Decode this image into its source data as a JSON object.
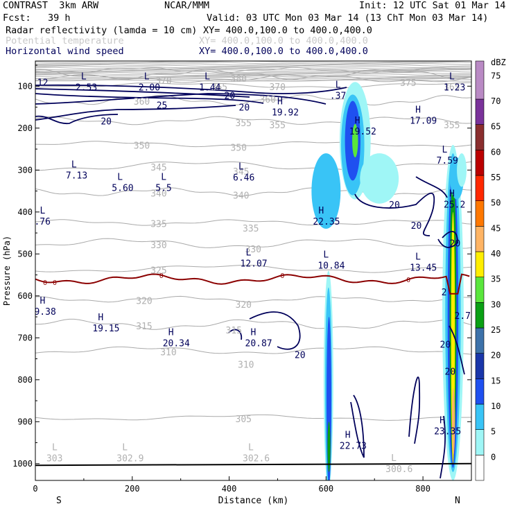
{
  "header": {
    "model": "CONTRAST  3km ARW",
    "source": "NCAR/MMM",
    "init": "Init: 12 UTC Sat 01 Mar 14",
    "fcst": "Fcst:   39 h",
    "valid": "Valid: 03 UTC Mon 03 Mar 14 (13 ChT Mon 03 Mar 14)",
    "fields": [
      {
        "label": "Radar reflectivity (lamda = 10 cm)",
        "xy": "XY= 400.0,100.0 to 400.0,400.0",
        "color": "#000000"
      },
      {
        "label": "Potential temperature",
        "xy": "XY= 400.0,100.0 to 400.0,400.0",
        "color": "#c8c8c8"
      },
      {
        "label": "Horizontal wind speed",
        "xy": "XY= 400.0,100.0 to 400.0,400.0",
        "color": "#00005a"
      }
    ]
  },
  "chart_data": {
    "type": "cross-section",
    "title": "Radar reflectivity, potential temperature, horizontal wind speed",
    "xlabel": "Distance (km)",
    "ylabel": "Pressure (hPa)",
    "xlim": [
      0,
      900
    ],
    "ylim": [
      1040,
      40
    ],
    "x_ticks": [
      0,
      200,
      400,
      600,
      800
    ],
    "y_ticks": [
      100,
      200,
      300,
      400,
      500,
      600,
      700,
      800,
      900,
      1000
    ],
    "x_ends": {
      "left": "S",
      "right": "N"
    },
    "colorbar": {
      "unit": "dBZ",
      "levels": [
        0,
        5,
        10,
        15,
        20,
        25,
        30,
        35,
        40,
        45,
        50,
        55,
        60,
        65,
        70,
        75
      ],
      "colors": [
        "#ffffff",
        "#9ff6f6",
        "#39c4f6",
        "#1f50f0",
        "#1a36aa",
        "#3d72aa",
        "#0aa014",
        "#5ae63c",
        "#ffee00",
        "#ffb464",
        "#ff7800",
        "#ff2800",
        "#bb0000",
        "#8a2e2e",
        "#7a329a",
        "#b98ac4"
      ]
    },
    "theta_contours": [
      {
        "value": 305,
        "p": 890
      },
      {
        "value": 310,
        "p": 730
      },
      {
        "value": 315,
        "p": 668
      },
      {
        "value": 320,
        "p": 608
      },
      {
        "value": 325,
        "p": 535
      },
      {
        "value": 330,
        "p": 475
      },
      {
        "value": 335,
        "p": 425
      },
      {
        "value": 340,
        "p": 352
      },
      {
        "value": 345,
        "p": 290
      },
      {
        "value": 350,
        "p": 238
      },
      {
        "value": 355,
        "p": 182
      },
      {
        "value": 360,
        "p": 133
      },
      {
        "value": 365,
        "p": 98
      },
      {
        "value": 370,
        "p": 82
      },
      {
        "value": 375,
        "p": 72
      },
      {
        "value": 380,
        "p": 62
      }
    ],
    "theta_labels": [
      {
        "text": "305",
        "x": 430,
        "p": 893
      },
      {
        "text": "310",
        "x": 275,
        "p": 733
      },
      {
        "text": "310",
        "x": 435,
        "p": 763
      },
      {
        "text": "315",
        "x": 225,
        "p": 671
      },
      {
        "text": "315",
        "x": 410,
        "p": 681
      },
      {
        "text": "320",
        "x": 225,
        "p": 611
      },
      {
        "text": "320",
        "x": 430,
        "p": 620
      },
      {
        "text": "325",
        "x": 255,
        "p": 538
      },
      {
        "text": "330",
        "x": 255,
        "p": 478
      },
      {
        "text": "330",
        "x": 450,
        "p": 488
      },
      {
        "text": "335",
        "x": 255,
        "p": 428
      },
      {
        "text": "335",
        "x": 445,
        "p": 438
      },
      {
        "text": "340",
        "x": 255,
        "p": 355
      },
      {
        "text": "340",
        "x": 425,
        "p": 360
      },
      {
        "text": "345",
        "x": 255,
        "p": 293
      },
      {
        "text": "345",
        "x": 425,
        "p": 303
      },
      {
        "text": "350",
        "x": 220,
        "p": 241
      },
      {
        "text": "350",
        "x": 420,
        "p": 246
      },
      {
        "text": "355",
        "x": 430,
        "p": 187
      },
      {
        "text": "355",
        "x": 500,
        "p": 192
      },
      {
        "text": "355",
        "x": 860,
        "p": 192
      },
      {
        "text": "360",
        "x": 220,
        "p": 136
      },
      {
        "text": "360",
        "x": 480,
        "p": 131
      },
      {
        "text": "365",
        "x": 380,
        "p": 101
      },
      {
        "text": "365",
        "x": 860,
        "p": 101
      },
      {
        "text": "370",
        "x": 265,
        "p": 86
      },
      {
        "text": "370",
        "x": 500,
        "p": 101
      },
      {
        "text": "375",
        "x": 770,
        "p": 91
      },
      {
        "text": "380",
        "x": 420,
        "p": 81
      }
    ],
    "zero_isotherm_label": "0",
    "wind_speed_contours": [
      {
        "value": 20,
        "where": "upper jet near 150-190 hPa, 0-560 km"
      },
      {
        "value": 25,
        "where": "jet core near 140 hPa, 150-300 km"
      },
      {
        "value": 20,
        "where": "mid levels 640-760 km, 350-420 hPa"
      },
      {
        "value": 20,
        "where": "700 hPa closed contours 440-630 km"
      },
      {
        "value": 20,
        "where": "lower levels 800-900 km"
      }
    ],
    "highs_lows": [
      {
        "type": "L",
        "value": "2.53",
        "x": 100,
        "p": 90
      },
      {
        "type": "L",
        "value": "2.00",
        "x": 230,
        "p": 90
      },
      {
        "type": "L",
        "value": "1.44",
        "x": 355,
        "p": 90
      },
      {
        "type": "L",
        "value": ".37",
        "x": 625,
        "p": 110
      },
      {
        "type": "L",
        "value": "1.23",
        "x": 860,
        "p": 90
      },
      {
        "type": "H",
        "value": "19.92",
        "x": 505,
        "p": 150
      },
      {
        "type": "H",
        "value": "17.09",
        "x": 790,
        "p": 170
      },
      {
        "type": "H",
        "value": "19.52",
        "x": 665,
        "p": 195
      },
      {
        "type": "L",
        "value": "7.13",
        "x": 80,
        "p": 300
      },
      {
        "type": "L",
        "value": "5.60",
        "x": 175,
        "p": 330
      },
      {
        "type": "L",
        "value": "5.5",
        "x": 265,
        "p": 330
      },
      {
        "type": "L",
        "value": "6.46",
        "x": 425,
        "p": 305
      },
      {
        "type": "L",
        "value": "7.59",
        "x": 845,
        "p": 265
      },
      {
        "type": "H",
        "value": "22.35",
        "x": 590,
        "p": 410
      },
      {
        "type": "H",
        "value": "25.2",
        "x": 860,
        "p": 370
      },
      {
        "type": "L",
        "value": ".76",
        "x": 15,
        "p": 410
      },
      {
        "type": "L",
        "value": "12.07",
        "x": 440,
        "p": 510
      },
      {
        "type": "L",
        "value": "10.84",
        "x": 600,
        "p": 515
      },
      {
        "type": "L",
        "value": "13.45",
        "x": 790,
        "p": 520
      },
      {
        "type": "H",
        "value": "9.38",
        "x": 15,
        "p": 625
      },
      {
        "type": "H",
        "value": "19.15",
        "x": 135,
        "p": 665
      },
      {
        "type": "H",
        "value": "20.34",
        "x": 280,
        "p": 700
      },
      {
        "type": "H",
        "value": "20.87",
        "x": 450,
        "p": 700
      },
      {
        "type": "H",
        "value": "23.35",
        "x": 840,
        "p": 910
      },
      {
        "type": "H",
        "value": "22.73",
        "x": 645,
        "p": 945
      },
      {
        "type": "L",
        "value": "303",
        "x": 40,
        "p": 975
      },
      {
        "type": "L",
        "value": "302.9",
        "x": 185,
        "p": 975
      },
      {
        "type": "L",
        "value": "302.6",
        "x": 445,
        "p": 975
      },
      {
        "type": "L",
        "value": "300.6",
        "x": 740,
        "p": 1000
      }
    ],
    "wind_labels": [
      {
        "text": "12",
        "x": 14,
        "p": 90
      },
      {
        "text": "20",
        "x": 400,
        "p": 122
      },
      {
        "text": "20",
        "x": 430,
        "p": 150
      },
      {
        "text": "25",
        "x": 260,
        "p": 145
      },
      {
        "text": "20",
        "x": 145,
        "p": 183
      },
      {
        "text": "20",
        "x": 740,
        "p": 382
      },
      {
        "text": "20",
        "x": 785,
        "p": 432
      },
      {
        "text": "20",
        "x": 865,
        "p": 474
      },
      {
        "text": "2",
        "x": 848,
        "p": 590
      },
      {
        "text": "2.7",
        "x": 875,
        "p": 647
      },
      {
        "text": "20",
        "x": 845,
        "p": 715
      },
      {
        "text": "20",
        "x": 545,
        "p": 740
      },
      {
        "text": "20",
        "x": 855,
        "p": 780
      }
    ]
  }
}
